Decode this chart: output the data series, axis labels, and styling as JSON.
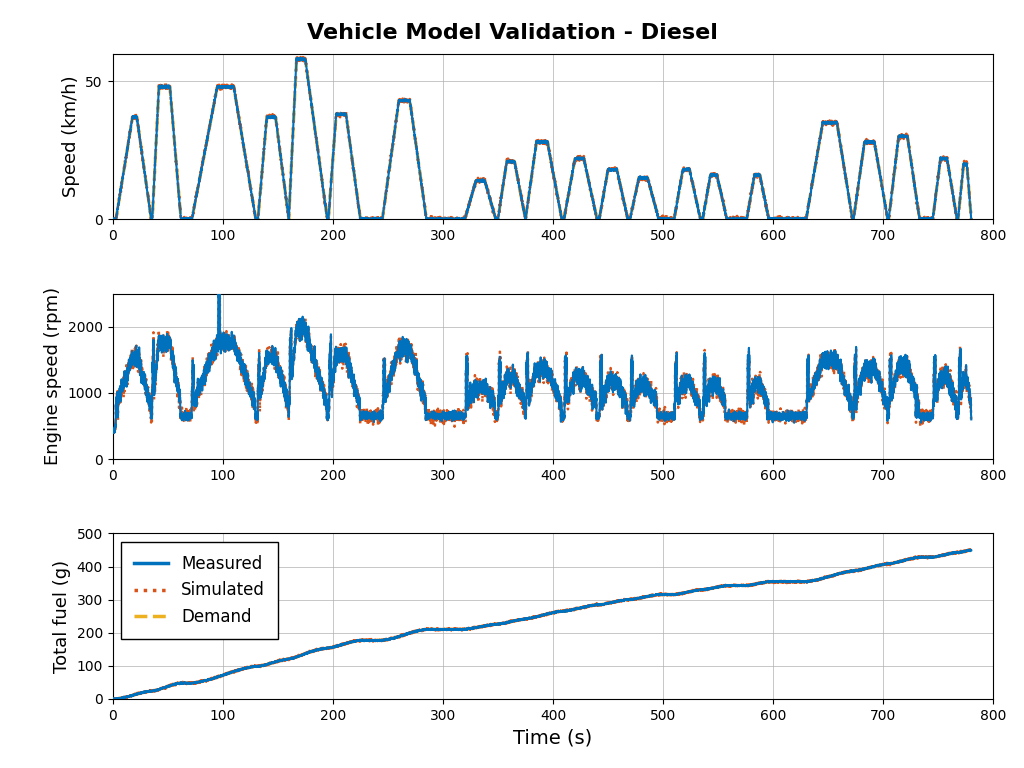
{
  "title": "Vehicle Model Validation - Diesel",
  "title_fontsize": 16,
  "title_fontweight": "bold",
  "xlabel": "Time (s)",
  "xlabel_fontsize": 14,
  "ylabel_speed": "Speed (km/h)",
  "ylabel_engine": "Engine speed (rpm)",
  "ylabel_fuel": "Total fuel (g)",
  "ylabel_fontsize": 13,
  "xlim": [
    0,
    800
  ],
  "speed_ylim": [
    0,
    60
  ],
  "engine_ylim": [
    0,
    2500
  ],
  "fuel_ylim": [
    0,
    500
  ],
  "speed_yticks": [
    0,
    50
  ],
  "engine_yticks": [
    0,
    1000,
    2000
  ],
  "fuel_yticks": [
    0,
    100,
    200,
    300,
    400,
    500
  ],
  "xticks": [
    0,
    100,
    200,
    300,
    400,
    500,
    600,
    700,
    800
  ],
  "measured_color": "#0072BD",
  "simulated_color": "#D95319",
  "demand_color": "#EDB120",
  "line_width": 1.5,
  "legend_fontsize": 12,
  "background_color": "white",
  "grid_color": "#b0b0b0",
  "seed": 42
}
